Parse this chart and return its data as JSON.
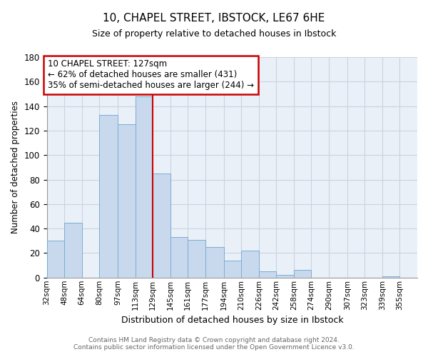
{
  "title1": "10, CHAPEL STREET, IBSTOCK, LE67 6HE",
  "title2": "Size of property relative to detached houses in Ibstock",
  "xlabel": "Distribution of detached houses by size in Ibstock",
  "ylabel": "Number of detached properties",
  "bar_left_edges": [
    32,
    48,
    64,
    80,
    97,
    113,
    129,
    145,
    161,
    177,
    194,
    210,
    226,
    242,
    258,
    274,
    290,
    307,
    323,
    339
  ],
  "bar_heights": [
    30,
    45,
    0,
    133,
    125,
    148,
    85,
    33,
    31,
    25,
    14,
    22,
    5,
    2,
    6,
    0,
    0,
    0,
    0,
    1
  ],
  "bar_widths": [
    16,
    16,
    16,
    17,
    16,
    16,
    16,
    16,
    16,
    17,
    16,
    16,
    16,
    16,
    16,
    16,
    17,
    16,
    16,
    16
  ],
  "bar_color": "#c8d9ee",
  "bar_edgecolor": "#7aadd4",
  "property_line_x": 129,
  "property_line_color": "#cc0000",
  "ylim": [
    0,
    180
  ],
  "yticks": [
    0,
    20,
    40,
    60,
    80,
    100,
    120,
    140,
    160,
    180
  ],
  "xtick_labels": [
    "32sqm",
    "48sqm",
    "64sqm",
    "80sqm",
    "97sqm",
    "113sqm",
    "129sqm",
    "145sqm",
    "161sqm",
    "177sqm",
    "194sqm",
    "210sqm",
    "226sqm",
    "242sqm",
    "258sqm",
    "274sqm",
    "290sqm",
    "307sqm",
    "323sqm",
    "339sqm",
    "355sqm"
  ],
  "xtick_positions": [
    32,
    48,
    64,
    80,
    97,
    113,
    129,
    145,
    161,
    177,
    194,
    210,
    226,
    242,
    258,
    274,
    290,
    307,
    323,
    339,
    355
  ],
  "annotation_text": "10 CHAPEL STREET: 127sqm\n← 62% of detached houses are smaller (431)\n35% of semi-detached houses are larger (244) →",
  "footer_line1": "Contains HM Land Registry data © Crown copyright and database right 2024.",
  "footer_line2": "Contains public sector information licensed under the Open Government Licence v3.0.",
  "background_color": "#ffffff",
  "grid_color": "#c8d4e0",
  "xlim_left": 32,
  "xlim_right": 371
}
